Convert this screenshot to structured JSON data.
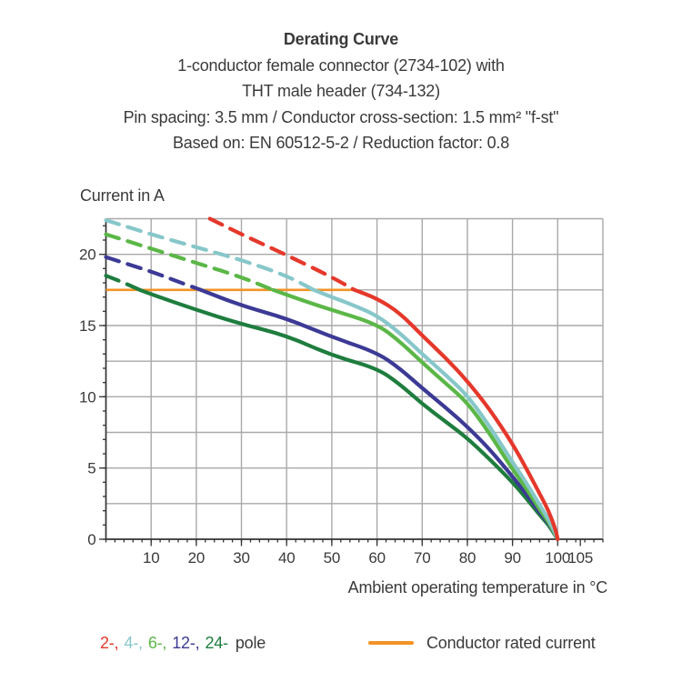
{
  "header": {
    "title": "Derating Curve",
    "lines": [
      "1-conductor female connector (2734-102) with",
      "THT male header (734-132)",
      "Pin spacing: 3.5 mm / Conductor cross-section: 1.5 mm² \"f-st\"",
      "Based on: EN 60512-5-2 / Reduction factor: 0.8"
    ]
  },
  "chart_data": {
    "type": "line",
    "title": "Derating Curve",
    "xlabel": "Ambient operating temperature in °C",
    "ylabel": "Current in A",
    "xlim": [
      0,
      110
    ],
    "ylim": [
      0,
      22.5
    ],
    "grid": true,
    "x_axis": {
      "grid_step": 10,
      "minor_tick_step": 2,
      "major_ticks": [
        10,
        20,
        30,
        40,
        50,
        60,
        70,
        80,
        90,
        100,
        105
      ],
      "tick_labels": [
        "10",
        "20",
        "30",
        "40",
        "50",
        "60",
        "70",
        "80",
        "90",
        "100",
        "105"
      ]
    },
    "y_axis": {
      "grid_step": 2.5,
      "minor_tick_step": 1,
      "major_ticks": [
        0,
        5,
        10,
        15,
        20
      ],
      "tick_labels": [
        "0",
        "5",
        "10",
        "15",
        "20"
      ]
    },
    "rated_current": {
      "label": "Conductor rated current",
      "value": 17.5,
      "x_start": 0,
      "x_end": 55,
      "color": "#F39325"
    },
    "series": [
      {
        "name": "2-pole",
        "color": "#E5382B",
        "dashed_points": [
          [
            23,
            22.5
          ],
          [
            30,
            21.4
          ],
          [
            40,
            19.95
          ],
          [
            50,
            18.4
          ],
          [
            55,
            17.5
          ]
        ],
        "solid_points": [
          [
            55,
            17.5
          ],
          [
            60,
            16.9
          ],
          [
            65,
            15.9
          ],
          [
            70,
            14.3
          ],
          [
            75,
            12.8
          ],
          [
            80,
            11.1
          ],
          [
            85,
            9.1
          ],
          [
            90,
            6.7
          ],
          [
            93,
            5.0
          ],
          [
            96,
            3.2
          ],
          [
            98,
            2.0
          ],
          [
            99.5,
            0.7
          ],
          [
            100,
            0
          ]
        ]
      },
      {
        "name": "4-pole",
        "color": "#87C7CA",
        "dashed_points": [
          [
            0,
            22.4
          ],
          [
            10,
            21.4
          ],
          [
            20,
            20.5
          ],
          [
            30,
            19.6
          ],
          [
            40,
            18.5
          ],
          [
            46,
            17.5
          ]
        ],
        "solid_points": [
          [
            46,
            17.5
          ],
          [
            50,
            17.0
          ],
          [
            55,
            16.4
          ],
          [
            60,
            15.7
          ],
          [
            65,
            14.5
          ],
          [
            70,
            13.0
          ],
          [
            75,
            11.6
          ],
          [
            80,
            10.1
          ],
          [
            85,
            7.9
          ],
          [
            90,
            5.4
          ],
          [
            93,
            4.0
          ],
          [
            96,
            2.4
          ],
          [
            98,
            1.4
          ],
          [
            99.5,
            0.4
          ],
          [
            100,
            0
          ]
        ]
      },
      {
        "name": "6-pole",
        "color": "#5BB747",
        "dashed_points": [
          [
            0,
            21.4
          ],
          [
            10,
            20.4
          ],
          [
            20,
            19.4
          ],
          [
            30,
            18.4
          ],
          [
            37,
            17.5
          ]
        ],
        "solid_points": [
          [
            37,
            17.5
          ],
          [
            45,
            16.6
          ],
          [
            50,
            16.1
          ],
          [
            60,
            15.1
          ],
          [
            65,
            13.9
          ],
          [
            70,
            12.4
          ],
          [
            75,
            11.0
          ],
          [
            80,
            9.6
          ],
          [
            85,
            7.4
          ],
          [
            90,
            4.9
          ],
          [
            93,
            3.6
          ],
          [
            96,
            2.1
          ],
          [
            98,
            1.2
          ],
          [
            99.5,
            0.3
          ],
          [
            100,
            0
          ]
        ]
      },
      {
        "name": "12-pole",
        "color": "#3C3A95",
        "dashed_points": [
          [
            0,
            19.8
          ],
          [
            10,
            18.8
          ],
          [
            15,
            18.2
          ],
          [
            21,
            17.5
          ]
        ],
        "solid_points": [
          [
            21,
            17.5
          ],
          [
            30,
            16.4
          ],
          [
            40,
            15.5
          ],
          [
            50,
            14.2
          ],
          [
            60,
            13.1
          ],
          [
            65,
            12.0
          ],
          [
            70,
            10.6
          ],
          [
            75,
            9.3
          ],
          [
            80,
            7.9
          ],
          [
            85,
            6.3
          ],
          [
            90,
            4.4
          ],
          [
            93,
            3.2
          ],
          [
            96,
            1.9
          ],
          [
            98,
            1.1
          ],
          [
            99.5,
            0.3
          ],
          [
            100,
            0
          ]
        ]
      },
      {
        "name": "24-pole",
        "color": "#1E7D3E",
        "dashed_points": [
          [
            0,
            18.5
          ],
          [
            4,
            18.0
          ],
          [
            7.5,
            17.5
          ]
        ],
        "solid_points": [
          [
            7.5,
            17.5
          ],
          [
            10,
            17.2
          ],
          [
            20,
            16.1
          ],
          [
            30,
            15.1
          ],
          [
            40,
            14.3
          ],
          [
            50,
            12.9
          ],
          [
            60,
            12.0
          ],
          [
            65,
            10.9
          ],
          [
            70,
            9.5
          ],
          [
            75,
            8.3
          ],
          [
            80,
            7.1
          ],
          [
            85,
            5.6
          ],
          [
            90,
            4.0
          ],
          [
            93,
            2.9
          ],
          [
            96,
            1.7
          ],
          [
            98,
            1.0
          ],
          [
            99.5,
            0.25
          ],
          [
            100,
            0
          ]
        ]
      }
    ],
    "style": {
      "grid_color": "#A9A9A9",
      "axis_color": "#333333",
      "tick_label_color": "#3A3A3A"
    }
  },
  "legend": {
    "pole_items": [
      {
        "label": "2-,",
        "color": "#E5382B"
      },
      {
        "label": "4-,",
        "color": "#87C7CA"
      },
      {
        "label": "6-,",
        "color": "#5BB747"
      },
      {
        "label": "12-,",
        "color": "#3C3A95"
      },
      {
        "label": "24-",
        "color": "#1E7D3E"
      }
    ],
    "pole_suffix": "pole",
    "rated": {
      "label": "Conductor rated current",
      "color": "#F39325"
    }
  }
}
